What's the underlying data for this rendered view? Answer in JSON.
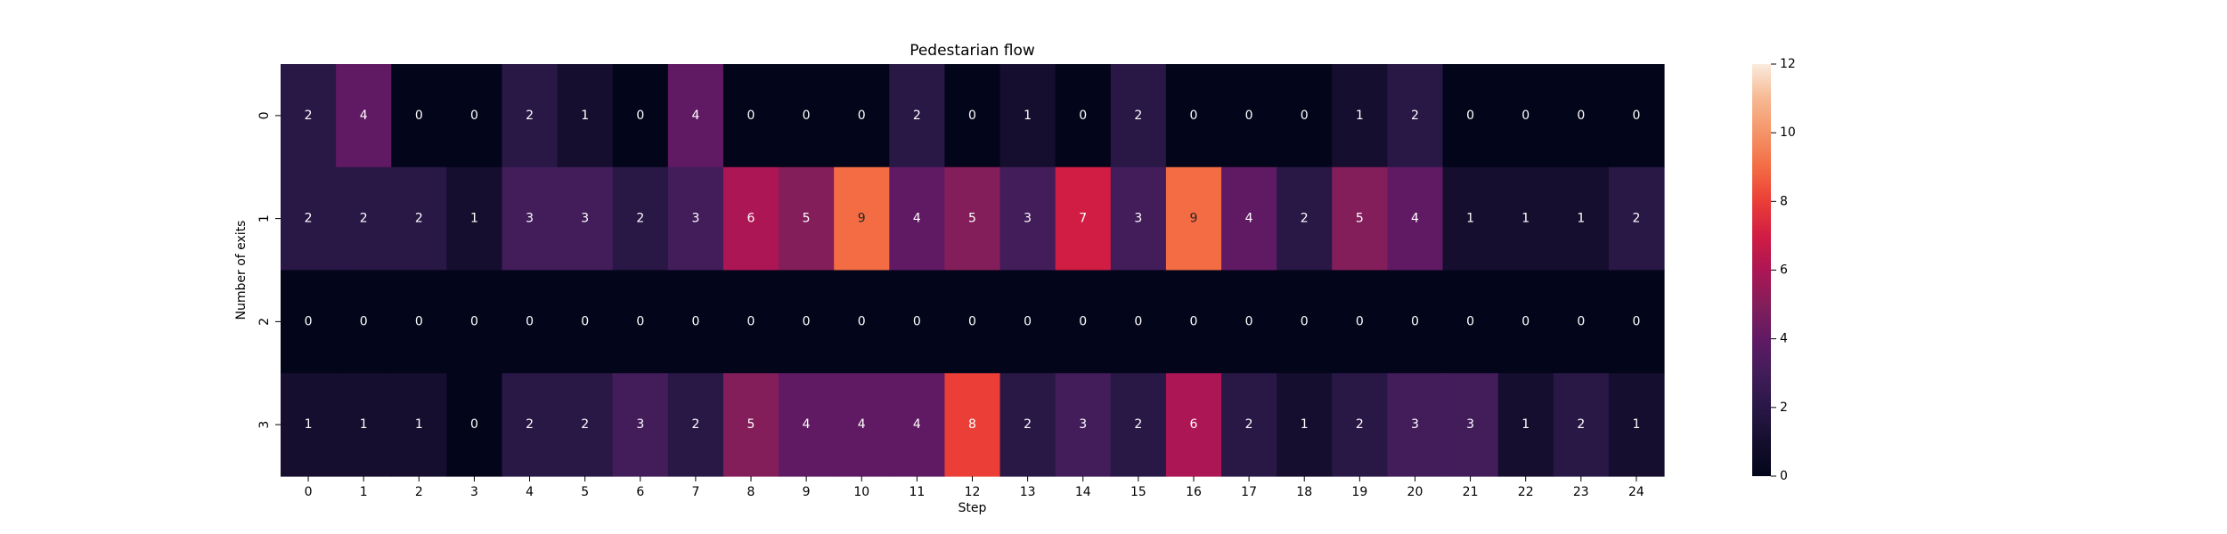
{
  "chart_data": {
    "type": "heatmap",
    "title": "Pedestarian flow",
    "xlabel": "Step",
    "ylabel": "Number of exits",
    "x_categories": [
      "0",
      "1",
      "2",
      "3",
      "4",
      "5",
      "6",
      "7",
      "8",
      "9",
      "10",
      "11",
      "12",
      "13",
      "14",
      "15",
      "16",
      "17",
      "18",
      "19",
      "20",
      "21",
      "22",
      "23",
      "24"
    ],
    "y_categories": [
      "0",
      "1",
      "2",
      "3"
    ],
    "values": [
      [
        2,
        4,
        0,
        0,
        2,
        1,
        0,
        4,
        0,
        0,
        0,
        2,
        0,
        1,
        0,
        2,
        0,
        0,
        0,
        1,
        2,
        0,
        0,
        0,
        0
      ],
      [
        2,
        2,
        2,
        1,
        3,
        3,
        2,
        3,
        6,
        5,
        9,
        4,
        5,
        3,
        7,
        3,
        9,
        4,
        2,
        5,
        4,
        1,
        1,
        1,
        2
      ],
      [
        0,
        0,
        0,
        0,
        0,
        0,
        0,
        0,
        0,
        0,
        0,
        0,
        0,
        0,
        0,
        0,
        0,
        0,
        0,
        0,
        0,
        0,
        0,
        0,
        0
      ],
      [
        1,
        1,
        1,
        0,
        2,
        2,
        3,
        2,
        5,
        4,
        4,
        4,
        8,
        2,
        3,
        2,
        6,
        2,
        1,
        2,
        3,
        3,
        1,
        2,
        1
      ]
    ],
    "colorbar": {
      "min": 0,
      "max": 12,
      "ticks": [
        "0",
        "2",
        "4",
        "6",
        "8",
        "10",
        "12"
      ],
      "colormap": "rocket"
    },
    "annotations": true,
    "grid": false
  }
}
